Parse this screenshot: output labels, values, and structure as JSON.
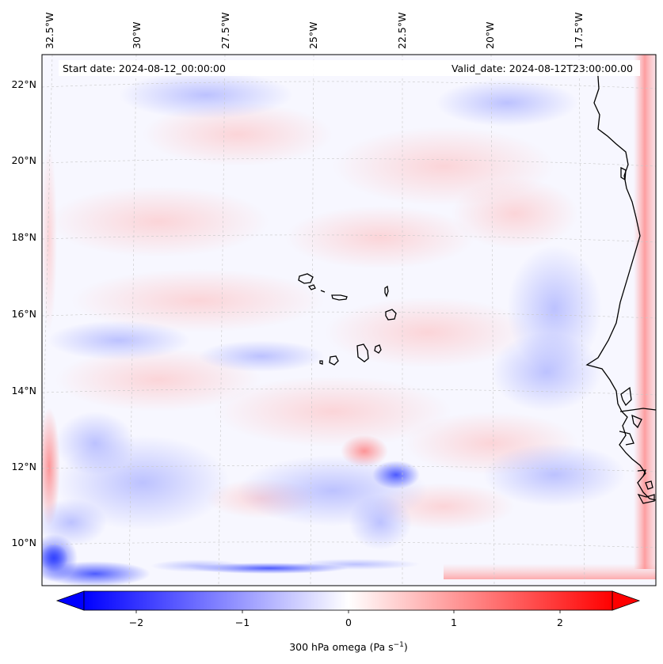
{
  "map": {
    "start_date": "Start date: 2024-08-12_00:00:00",
    "valid_date": "Valid_date: 2024-08-12T23:00:00.00",
    "lon_labels": [
      "32.5°W",
      "30°W",
      "27.5°W",
      "25°W",
      "22.5°W",
      "20°W",
      "17.5°W"
    ],
    "lat_labels": [
      "22°N",
      "20°N",
      "18°N",
      "16°N",
      "14°N",
      "12°N",
      "10°N"
    ]
  },
  "colorbar": {
    "ticks": [
      "−2",
      "−1",
      "0",
      "1",
      "2"
    ],
    "label_main": "300 hPa omega (Pa s",
    "label_sup": "−1",
    "label_end": ")",
    "min": -2.75,
    "max": 2.75,
    "colors": {
      "negative": "#0000ff",
      "zero": "#ffffff",
      "positive": "#ff0000"
    }
  }
}
